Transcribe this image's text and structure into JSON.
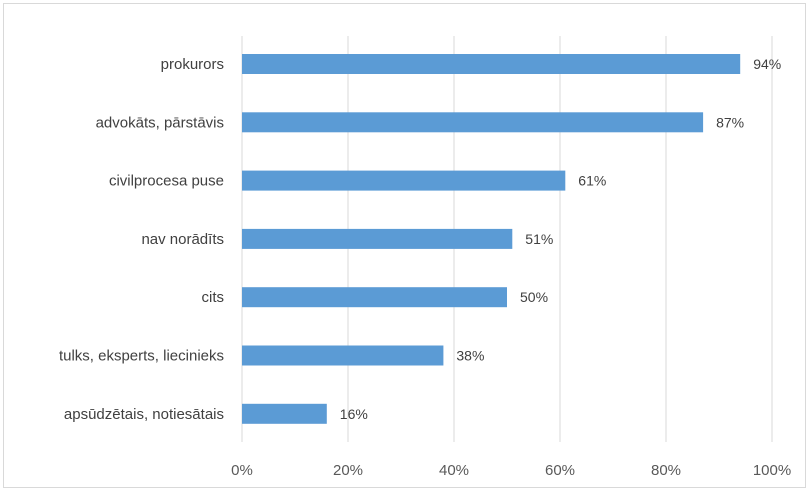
{
  "chart_data": {
    "type": "bar",
    "orientation": "horizontal",
    "categories": [
      "prokurors",
      "advokāts, pārstāvis",
      "civilprocesa puse",
      "nav norādīts",
      "cits",
      "tulks, eksperts, liecinieks",
      "apsūdzētais, notiesātais"
    ],
    "values": [
      94,
      87,
      61,
      51,
      50,
      38,
      16
    ],
    "data_labels": [
      "94%",
      "87%",
      "61%",
      "51%",
      "50%",
      "38%",
      "16%"
    ],
    "x_ticks": [
      "0%",
      "20%",
      "40%",
      "60%",
      "80%",
      "100%"
    ],
    "xlim": [
      0,
      100
    ],
    "title": "",
    "xlabel": "",
    "ylabel": "",
    "grid": "vertical",
    "legend": "none",
    "bar_color": "#5b9bd5",
    "grid_color": "#d9d9d9"
  }
}
